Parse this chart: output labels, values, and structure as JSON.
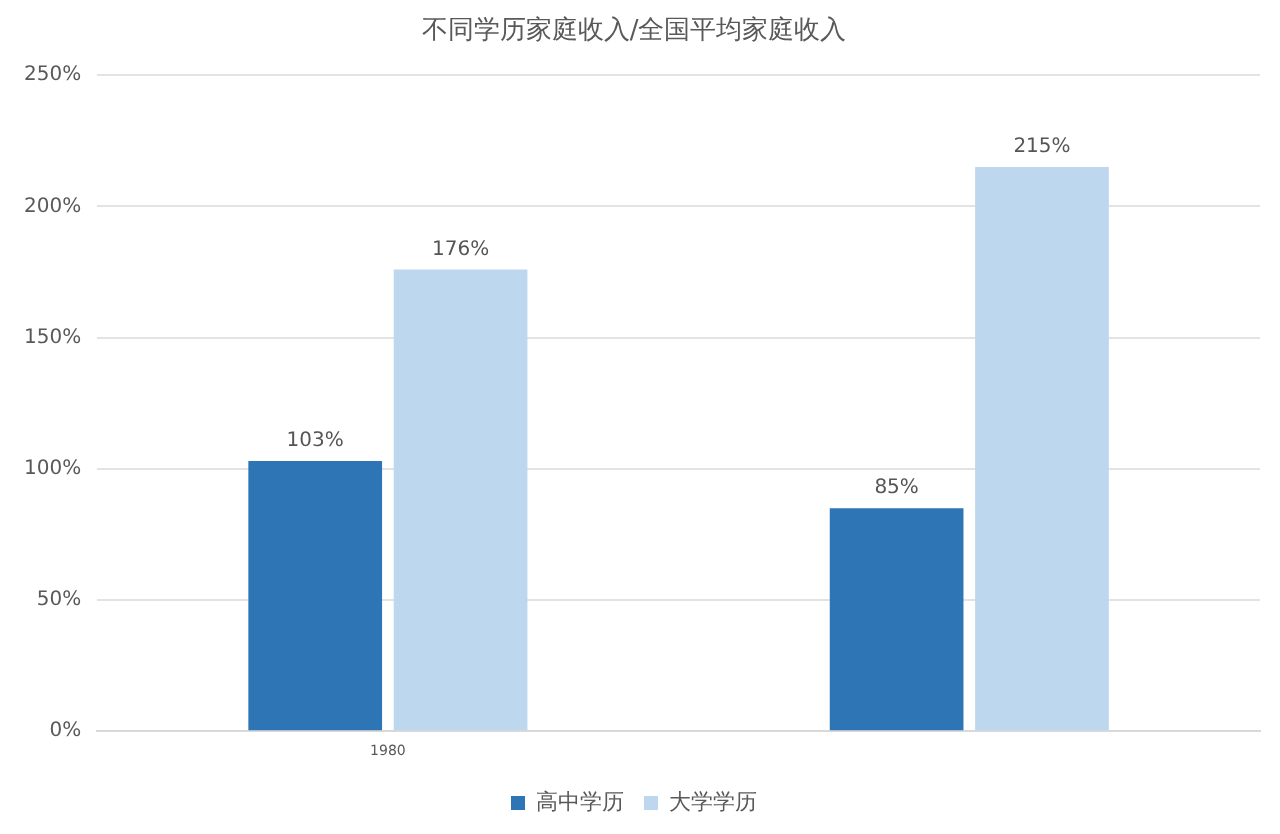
{
  "chart_data": {
    "type": "bar",
    "title": "不同学历家庭收入/全国平均家庭收入",
    "categories": [
      "1980",
      null
    ],
    "series": [
      {
        "name": "高中学历",
        "color": "#2e75b6",
        "values": [
          103,
          85
        ],
        "value_labels": [
          "103%",
          "85%"
        ]
      },
      {
        "name": "大学学历",
        "color": "#bdd7ee",
        "values": [
          176,
          215
        ],
        "value_labels": [
          "176%",
          "215%"
        ]
      }
    ],
    "ylim": [
      0,
      250
    ],
    "yticks": [
      {
        "value": 0,
        "label": "0%"
      },
      {
        "value": 50,
        "label": "50%"
      },
      {
        "value": 100,
        "label": "100%"
      },
      {
        "value": 150,
        "label": "150%"
      },
      {
        "value": 200,
        "label": "200%"
      },
      {
        "value": 250,
        "label": "250%"
      }
    ],
    "grid": "y",
    "legend": "bottom"
  }
}
